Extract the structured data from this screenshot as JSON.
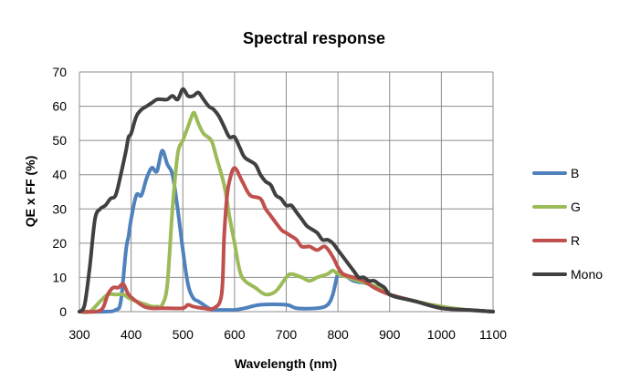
{
  "chart_data": {
    "type": "line",
    "title": "Spectral response",
    "xlabel": "Wavelength (nm)",
    "ylabel": "QE x FF (%)",
    "xlim": [
      300,
      1100
    ],
    "ylim": [
      0,
      70
    ],
    "xticks": [
      300,
      400,
      500,
      600,
      700,
      800,
      900,
      1000,
      1100
    ],
    "yticks": [
      0,
      10,
      20,
      30,
      40,
      50,
      60,
      70
    ],
    "grid": true,
    "legend_position": "right",
    "series": [
      {
        "name": "B",
        "color": "#4f81bd",
        "points": [
          [
            300,
            0
          ],
          [
            350,
            0
          ],
          [
            370,
            0.5
          ],
          [
            380,
            3
          ],
          [
            390,
            18
          ],
          [
            395,
            22
          ],
          [
            400,
            27
          ],
          [
            410,
            34
          ],
          [
            420,
            34
          ],
          [
            430,
            39
          ],
          [
            440,
            42
          ],
          [
            450,
            41
          ],
          [
            460,
            47
          ],
          [
            470,
            43
          ],
          [
            480,
            40
          ],
          [
            490,
            30
          ],
          [
            500,
            18
          ],
          [
            510,
            8
          ],
          [
            520,
            4
          ],
          [
            530,
            3
          ],
          [
            540,
            2
          ],
          [
            550,
            1
          ],
          [
            560,
            0.5
          ],
          [
            580,
            0.5
          ],
          [
            600,
            0.5
          ],
          [
            620,
            1
          ],
          [
            650,
            2
          ],
          [
            700,
            2
          ],
          [
            720,
            1
          ],
          [
            760,
            1
          ],
          [
            780,
            2
          ],
          [
            790,
            5
          ],
          [
            800,
            11
          ],
          [
            810,
            11
          ],
          [
            830,
            9
          ],
          [
            860,
            8
          ],
          [
            900,
            5
          ],
          [
            950,
            3
          ],
          [
            1000,
            1
          ],
          [
            1050,
            0.5
          ],
          [
            1100,
            0
          ]
        ]
      },
      {
        "name": "G",
        "color": "#9bbb59",
        "points": [
          [
            300,
            0
          ],
          [
            320,
            0
          ],
          [
            340,
            3
          ],
          [
            355,
            5
          ],
          [
            370,
            5
          ],
          [
            385,
            5
          ],
          [
            395,
            4
          ],
          [
            410,
            3
          ],
          [
            430,
            2
          ],
          [
            440,
            1.5
          ],
          [
            450,
            1.5
          ],
          [
            460,
            2
          ],
          [
            470,
            8
          ],
          [
            480,
            30
          ],
          [
            490,
            46
          ],
          [
            500,
            50
          ],
          [
            510,
            54
          ],
          [
            520,
            58
          ],
          [
            525,
            57
          ],
          [
            530,
            55
          ],
          [
            540,
            52
          ],
          [
            555,
            50
          ],
          [
            565,
            45
          ],
          [
            580,
            37
          ],
          [
            590,
            28
          ],
          [
            600,
            20
          ],
          [
            610,
            12
          ],
          [
            620,
            9
          ],
          [
            640,
            7
          ],
          [
            660,
            5
          ],
          [
            680,
            6
          ],
          [
            700,
            10
          ],
          [
            710,
            11
          ],
          [
            730,
            10
          ],
          [
            745,
            9
          ],
          [
            760,
            10
          ],
          [
            780,
            11
          ],
          [
            790,
            12
          ],
          [
            800,
            11
          ],
          [
            820,
            10
          ],
          [
            840,
            9
          ],
          [
            860,
            8
          ],
          [
            880,
            7
          ],
          [
            900,
            5
          ],
          [
            950,
            3
          ],
          [
            1000,
            1.5
          ],
          [
            1050,
            0.5
          ],
          [
            1100,
            0
          ]
        ]
      },
      {
        "name": "R",
        "color": "#c0504d",
        "points": [
          [
            300,
            0
          ],
          [
            330,
            0
          ],
          [
            345,
            1
          ],
          [
            355,
            5
          ],
          [
            365,
            7
          ],
          [
            375,
            7
          ],
          [
            385,
            8
          ],
          [
            395,
            5
          ],
          [
            410,
            3
          ],
          [
            425,
            1.5
          ],
          [
            440,
            1
          ],
          [
            470,
            1
          ],
          [
            500,
            1
          ],
          [
            510,
            2
          ],
          [
            520,
            1.5
          ],
          [
            540,
            1
          ],
          [
            560,
            1
          ],
          [
            575,
            5
          ],
          [
            580,
            22
          ],
          [
            585,
            33
          ],
          [
            590,
            38
          ],
          [
            600,
            42
          ],
          [
            615,
            38
          ],
          [
            630,
            34
          ],
          [
            650,
            33
          ],
          [
            660,
            30
          ],
          [
            670,
            28
          ],
          [
            690,
            24
          ],
          [
            700,
            23
          ],
          [
            710,
            22
          ],
          [
            720,
            21
          ],
          [
            730,
            19
          ],
          [
            745,
            19
          ],
          [
            760,
            18
          ],
          [
            775,
            19
          ],
          [
            790,
            16
          ],
          [
            800,
            13
          ],
          [
            810,
            11
          ],
          [
            830,
            10
          ],
          [
            850,
            9
          ],
          [
            870,
            7
          ],
          [
            900,
            5
          ],
          [
            950,
            3
          ],
          [
            1000,
            1
          ],
          [
            1050,
            0.5
          ],
          [
            1100,
            0
          ]
        ]
      },
      {
        "name": "Mono",
        "color": "#404040",
        "points": [
          [
            300,
            0
          ],
          [
            310,
            2
          ],
          [
            320,
            13
          ],
          [
            330,
            27
          ],
          [
            340,
            30
          ],
          [
            350,
            31
          ],
          [
            360,
            33
          ],
          [
            370,
            34
          ],
          [
            380,
            40
          ],
          [
            390,
            47
          ],
          [
            395,
            51
          ],
          [
            400,
            52
          ],
          [
            410,
            57
          ],
          [
            420,
            59
          ],
          [
            430,
            60
          ],
          [
            440,
            61
          ],
          [
            450,
            62
          ],
          [
            460,
            62
          ],
          [
            470,
            62
          ],
          [
            480,
            63
          ],
          [
            490,
            62
          ],
          [
            500,
            65
          ],
          [
            510,
            63
          ],
          [
            520,
            63
          ],
          [
            530,
            64
          ],
          [
            540,
            62
          ],
          [
            550,
            60
          ],
          [
            560,
            59
          ],
          [
            570,
            57
          ],
          [
            580,
            54
          ],
          [
            590,
            51
          ],
          [
            600,
            51
          ],
          [
            610,
            48
          ],
          [
            620,
            45
          ],
          [
            640,
            43
          ],
          [
            650,
            40
          ],
          [
            660,
            38
          ],
          [
            670,
            37
          ],
          [
            680,
            34
          ],
          [
            690,
            33
          ],
          [
            700,
            31
          ],
          [
            710,
            31
          ],
          [
            720,
            29
          ],
          [
            730,
            27
          ],
          [
            740,
            25
          ],
          [
            750,
            24
          ],
          [
            760,
            23
          ],
          [
            770,
            21
          ],
          [
            780,
            21
          ],
          [
            790,
            20
          ],
          [
            800,
            18
          ],
          [
            810,
            16
          ],
          [
            820,
            14
          ],
          [
            830,
            12
          ],
          [
            840,
            10
          ],
          [
            850,
            10
          ],
          [
            860,
            9
          ],
          [
            870,
            9
          ],
          [
            880,
            8
          ],
          [
            890,
            7
          ],
          [
            900,
            5
          ],
          [
            920,
            4
          ],
          [
            950,
            3
          ],
          [
            1000,
            1
          ],
          [
            1050,
            0.5
          ],
          [
            1100,
            0
          ]
        ]
      }
    ]
  }
}
